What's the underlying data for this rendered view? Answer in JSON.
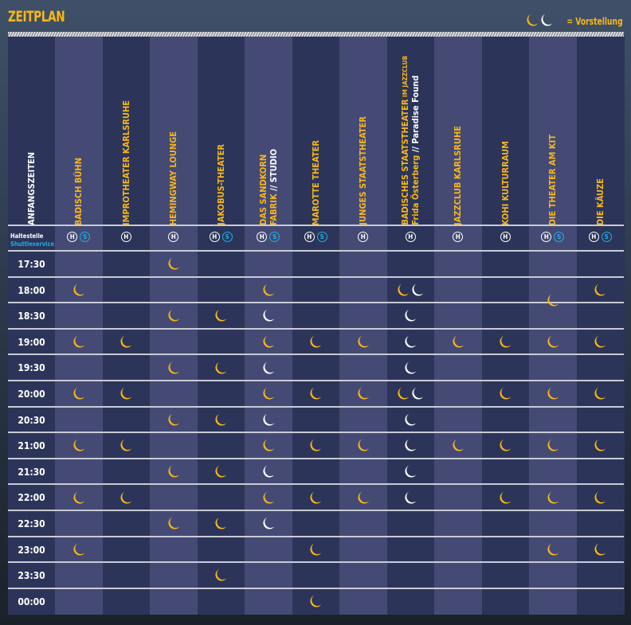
{
  "title": "ZEITPLAN",
  "legend": {
    "label": "= Vorstellung"
  },
  "colors": {
    "yellow": "#f7b718",
    "white": "#ffffff",
    "shuttle": "#1eaee6"
  },
  "header": {
    "time_column": "ANFANGSZEITEN"
  },
  "stops": {
    "halt_label": "Haltestelle",
    "shuttle_label": "Shuttleservice",
    "h": "H",
    "s": "S"
  },
  "venues": [
    {
      "name": "BADISCH BÜHN",
      "stops": [
        "H",
        "S"
      ]
    },
    {
      "name": "IMPROTHEATER KARLSRUHE",
      "stops": [
        "H"
      ]
    },
    {
      "name": "HEMINGWAY LOUNGE",
      "stops": [
        "H"
      ]
    },
    {
      "name": "JAKOBUS-THEATER",
      "stops": [
        "H",
        "S"
      ]
    },
    {
      "name": "DAS SANDKORN",
      "name2": "FABRIK",
      "name2_white": " // STUDIO",
      "stops": [
        "H",
        "S"
      ]
    },
    {
      "name": "MAROTTE THEATER",
      "stops": [
        "H",
        "S"
      ]
    },
    {
      "name": "JUNGES STAATSTHEATER",
      "stops": [
        "H"
      ]
    },
    {
      "name": "BADISCHES STAATSTHEATER",
      "name_small": " IM JAZZCLUB",
      "name2": "Frida Österberg",
      "name2_white": " // Paradise Found",
      "stops": [
        "H"
      ]
    },
    {
      "name": "JAZZCLUB KARLSRUHE",
      "stops": [
        "H"
      ]
    },
    {
      "name": "KOHI KULTURRAUM",
      "stops": [
        "H"
      ]
    },
    {
      "name": "DIE THEATER AM KIT",
      "stops": [
        "H",
        "S"
      ]
    },
    {
      "name": "DIE KÄUZE",
      "stops": [
        "H",
        "S"
      ]
    }
  ],
  "times": [
    "17:30",
    "18:00",
    "18:30",
    "19:00",
    "19:30",
    "20:00",
    "20:30",
    "21:00",
    "21:30",
    "22:00",
    "22:30",
    "23:00",
    "23:30",
    "00:00"
  ],
  "schedule": {
    "17:30": {
      "2": [
        "Y"
      ]
    },
    "18:00": {
      "0": [
        "Y"
      ],
      "4": [
        "Y"
      ],
      "7": [
        "Y",
        "W"
      ],
      "10": [
        "Y-late"
      ],
      "11": [
        "Y"
      ]
    },
    "18:30": {
      "2": [
        "Y"
      ],
      "3": [
        "Y"
      ],
      "4": [
        "W"
      ],
      "7": [
        "W"
      ]
    },
    "19:00": {
      "0": [
        "Y"
      ],
      "1": [
        "Y"
      ],
      "4": [
        "Y"
      ],
      "5": [
        "Y"
      ],
      "6": [
        "Y"
      ],
      "7": [
        "W"
      ],
      "8": [
        "Y"
      ],
      "9": [
        "Y"
      ],
      "10": [
        "Y"
      ],
      "11": [
        "Y"
      ]
    },
    "19:30": {
      "2": [
        "Y"
      ],
      "3": [
        "Y"
      ],
      "4": [
        "W"
      ],
      "7": [
        "W"
      ]
    },
    "20:00": {
      "0": [
        "Y"
      ],
      "1": [
        "Y"
      ],
      "4": [
        "Y"
      ],
      "5": [
        "Y"
      ],
      "6": [
        "Y"
      ],
      "7": [
        "Y",
        "W"
      ],
      "9": [
        "Y"
      ],
      "10": [
        "Y"
      ],
      "11": [
        "Y"
      ]
    },
    "20:30": {
      "2": [
        "Y"
      ],
      "3": [
        "Y"
      ],
      "4": [
        "W"
      ],
      "7": [
        "W"
      ]
    },
    "21:00": {
      "0": [
        "Y"
      ],
      "1": [
        "Y"
      ],
      "4": [
        "Y"
      ],
      "5": [
        "Y"
      ],
      "6": [
        "Y"
      ],
      "7": [
        "W"
      ],
      "8": [
        "Y"
      ],
      "9": [
        "Y"
      ],
      "10": [
        "Y"
      ],
      "11": [
        "Y"
      ]
    },
    "21:30": {
      "2": [
        "Y"
      ],
      "3": [
        "Y"
      ],
      "4": [
        "W"
      ],
      "7": [
        "W"
      ]
    },
    "22:00": {
      "0": [
        "Y"
      ],
      "1": [
        "Y"
      ],
      "4": [
        "Y"
      ],
      "5": [
        "Y"
      ],
      "6": [
        "Y"
      ],
      "7": [
        "W"
      ],
      "9": [
        "Y"
      ],
      "10": [
        "Y"
      ],
      "11": [
        "Y"
      ]
    },
    "22:30": {
      "2": [
        "Y"
      ],
      "3": [
        "Y"
      ],
      "4": [
        "W"
      ]
    },
    "23:00": {
      "0": [
        "Y"
      ],
      "5": [
        "Y"
      ],
      "10": [
        "Y"
      ],
      "11": [
        "Y"
      ]
    },
    "23:30": {
      "3": [
        "Y"
      ]
    },
    "00:00": {
      "5": [
        "Y"
      ]
    }
  }
}
